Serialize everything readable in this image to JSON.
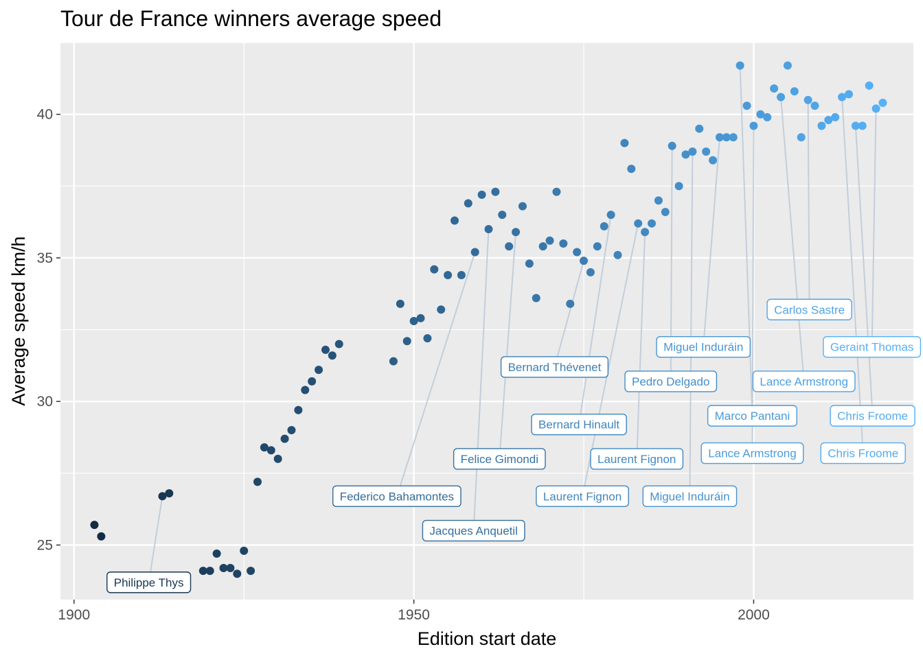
{
  "chart_data": {
    "type": "scatter",
    "title": "Tour de France winners average speed",
    "xlabel": "Edition start date",
    "ylabel": "Average speed km/h",
    "xlim": [
      1898,
      2023.5
    ],
    "ylim": [
      23.1,
      42.5
    ],
    "x_ticks": [
      1900,
      1950,
      2000
    ],
    "y_ticks": [
      25,
      30,
      35,
      40
    ],
    "grid": true,
    "legend": "none",
    "color_low": "#132B43",
    "color_high": "#56B1F7",
    "points": [
      {
        "x": 1903,
        "y": 25.7
      },
      {
        "x": 1904,
        "y": 25.3
      },
      {
        "x": 1913,
        "y": 26.7
      },
      {
        "x": 1914,
        "y": 26.8
      },
      {
        "x": 1919,
        "y": 24.1
      },
      {
        "x": 1920,
        "y": 24.1
      },
      {
        "x": 1921,
        "y": 24.7
      },
      {
        "x": 1922,
        "y": 24.2
      },
      {
        "x": 1923,
        "y": 24.2
      },
      {
        "x": 1924,
        "y": 24.0
      },
      {
        "x": 1925,
        "y": 24.8
      },
      {
        "x": 1926,
        "y": 24.1
      },
      {
        "x": 1927,
        "y": 27.2
      },
      {
        "x": 1928,
        "y": 28.4
      },
      {
        "x": 1929,
        "y": 28.3
      },
      {
        "x": 1930,
        "y": 28.0
      },
      {
        "x": 1931,
        "y": 28.7
      },
      {
        "x": 1932,
        "y": 29.0
      },
      {
        "x": 1933,
        "y": 29.7
      },
      {
        "x": 1934,
        "y": 30.4
      },
      {
        "x": 1935,
        "y": 30.7
      },
      {
        "x": 1936,
        "y": 31.1
      },
      {
        "x": 1937,
        "y": 31.8
      },
      {
        "x": 1938,
        "y": 31.6
      },
      {
        "x": 1939,
        "y": 32.0
      },
      {
        "x": 1947,
        "y": 31.4
      },
      {
        "x": 1948,
        "y": 33.4
      },
      {
        "x": 1949,
        "y": 32.1
      },
      {
        "x": 1950,
        "y": 32.8
      },
      {
        "x": 1951,
        "y": 32.9
      },
      {
        "x": 1952,
        "y": 32.2
      },
      {
        "x": 1953,
        "y": 34.6
      },
      {
        "x": 1954,
        "y": 33.2
      },
      {
        "x": 1955,
        "y": 34.4
      },
      {
        "x": 1956,
        "y": 36.3
      },
      {
        "x": 1957,
        "y": 34.4
      },
      {
        "x": 1958,
        "y": 36.9
      },
      {
        "x": 1959,
        "y": 35.2
      },
      {
        "x": 1960,
        "y": 37.2
      },
      {
        "x": 1961,
        "y": 36.0
      },
      {
        "x": 1962,
        "y": 37.3
      },
      {
        "x": 1963,
        "y": 36.5
      },
      {
        "x": 1964,
        "y": 35.4
      },
      {
        "x": 1965,
        "y": 35.9
      },
      {
        "x": 1966,
        "y": 36.8
      },
      {
        "x": 1967,
        "y": 34.8
      },
      {
        "x": 1968,
        "y": 33.6
      },
      {
        "x": 1969,
        "y": 35.4
      },
      {
        "x": 1970,
        "y": 35.6
      },
      {
        "x": 1971,
        "y": 37.3
      },
      {
        "x": 1972,
        "y": 35.5
      },
      {
        "x": 1973,
        "y": 33.4
      },
      {
        "x": 1974,
        "y": 35.2
      },
      {
        "x": 1975,
        "y": 34.9
      },
      {
        "x": 1976,
        "y": 34.5
      },
      {
        "x": 1977,
        "y": 35.4
      },
      {
        "x": 1978,
        "y": 36.1
      },
      {
        "x": 1979,
        "y": 36.5
      },
      {
        "x": 1980,
        "y": 35.1
      },
      {
        "x": 1981,
        "y": 39.0
      },
      {
        "x": 1982,
        "y": 38.1
      },
      {
        "x": 1983,
        "y": 36.2
      },
      {
        "x": 1984,
        "y": 35.9
      },
      {
        "x": 1985,
        "y": 36.2
      },
      {
        "x": 1986,
        "y": 37.0
      },
      {
        "x": 1987,
        "y": 36.6
      },
      {
        "x": 1988,
        "y": 38.9
      },
      {
        "x": 1989,
        "y": 37.5
      },
      {
        "x": 1990,
        "y": 38.6
      },
      {
        "x": 1991,
        "y": 38.7
      },
      {
        "x": 1992,
        "y": 39.5
      },
      {
        "x": 1993,
        "y": 38.7
      },
      {
        "x": 1994,
        "y": 38.4
      },
      {
        "x": 1995,
        "y": 39.2
      },
      {
        "x": 1996,
        "y": 39.2
      },
      {
        "x": 1997,
        "y": 39.2
      },
      {
        "x": 1998,
        "y": 41.7
      },
      {
        "x": 1999,
        "y": 40.3
      },
      {
        "x": 2000,
        "y": 39.6
      },
      {
        "x": 2001,
        "y": 40.0
      },
      {
        "x": 2002,
        "y": 39.9
      },
      {
        "x": 2003,
        "y": 40.9
      },
      {
        "x": 2004,
        "y": 40.6
      },
      {
        "x": 2005,
        "y": 41.7
      },
      {
        "x": 2006,
        "y": 40.8
      },
      {
        "x": 2007,
        "y": 39.2
      },
      {
        "x": 2008,
        "y": 40.5
      },
      {
        "x": 2009,
        "y": 40.3
      },
      {
        "x": 2010,
        "y": 39.6
      },
      {
        "x": 2011,
        "y": 39.8
      },
      {
        "x": 2012,
        "y": 39.9
      },
      {
        "x": 2013,
        "y": 40.6
      },
      {
        "x": 2014,
        "y": 40.7
      },
      {
        "x": 2015,
        "y": 39.6
      },
      {
        "x": 2016,
        "y": 39.6
      },
      {
        "x": 2017,
        "y": 41.0
      },
      {
        "x": 2018,
        "y": 40.2
      },
      {
        "x": 2019,
        "y": 40.4
      }
    ],
    "annotations": [
      {
        "text": "Philippe Thys",
        "x": 1913,
        "y": 26.7,
        "label_x": 1911,
        "label_y": 23.7
      },
      {
        "text": "Jacques Anquetil",
        "x": 1961,
        "y": 36.0,
        "label_x": 1958.8,
        "label_y": 25.5
      },
      {
        "text": "Federico Bahamontes",
        "x": 1959,
        "y": 35.2,
        "label_x": 1947.5,
        "label_y": 26.7
      },
      {
        "text": "Felice Gimondi",
        "x": 1965,
        "y": 35.9,
        "label_x": 1962.6,
        "label_y": 28.0
      },
      {
        "text": "Bernard Thévenet",
        "x": 1975,
        "y": 34.9,
        "label_x": 1970.7,
        "label_y": 31.2
      },
      {
        "text": "Bernard Hinault",
        "x": 1979,
        "y": 36.5,
        "label_x": 1974.3,
        "label_y": 29.2
      },
      {
        "text": "Laurent Fignon",
        "x": 1983,
        "y": 36.2,
        "label_x": 1974.8,
        "label_y": 26.7
      },
      {
        "text": "Laurent Fignon",
        "x": 1984,
        "y": 35.9,
        "label_x": 1982.8,
        "label_y": 28.0
      },
      {
        "text": "Pedro Delgado",
        "x": 1988,
        "y": 38.9,
        "label_x": 1987.8,
        "label_y": 30.7
      },
      {
        "text": "Miguel Induráin",
        "x": 1991,
        "y": 38.7,
        "label_x": 1990.6,
        "label_y": 26.7
      },
      {
        "text": "Miguel Induráin",
        "x": 1995,
        "y": 39.2,
        "label_x": 1992.6,
        "label_y": 31.9
      },
      {
        "text": "Marco Pantani",
        "x": 1998,
        "y": 41.7,
        "label_x": 1999.8,
        "label_y": 29.5
      },
      {
        "text": "Lance Armstrong",
        "x": 2000,
        "y": 39.6,
        "label_x": 1999.8,
        "label_y": 28.2
      },
      {
        "text": "Lance Armstrong",
        "x": 2004,
        "y": 40.6,
        "label_x": 2007.4,
        "label_y": 30.7
      },
      {
        "text": "Carlos Sastre",
        "x": 2008,
        "y": 40.5,
        "label_x": 2008.2,
        "label_y": 33.2
      },
      {
        "text": "Chris Froome",
        "x": 2013,
        "y": 40.6,
        "label_x": 2016.1,
        "label_y": 28.2
      },
      {
        "text": "Chris Froome",
        "x": 2015,
        "y": 39.6,
        "label_x": 2017.5,
        "label_y": 29.5
      },
      {
        "text": "Geraint Thomas",
        "x": 2018,
        "y": 40.2,
        "label_x": 2017.4,
        "label_y": 31.9
      }
    ]
  }
}
